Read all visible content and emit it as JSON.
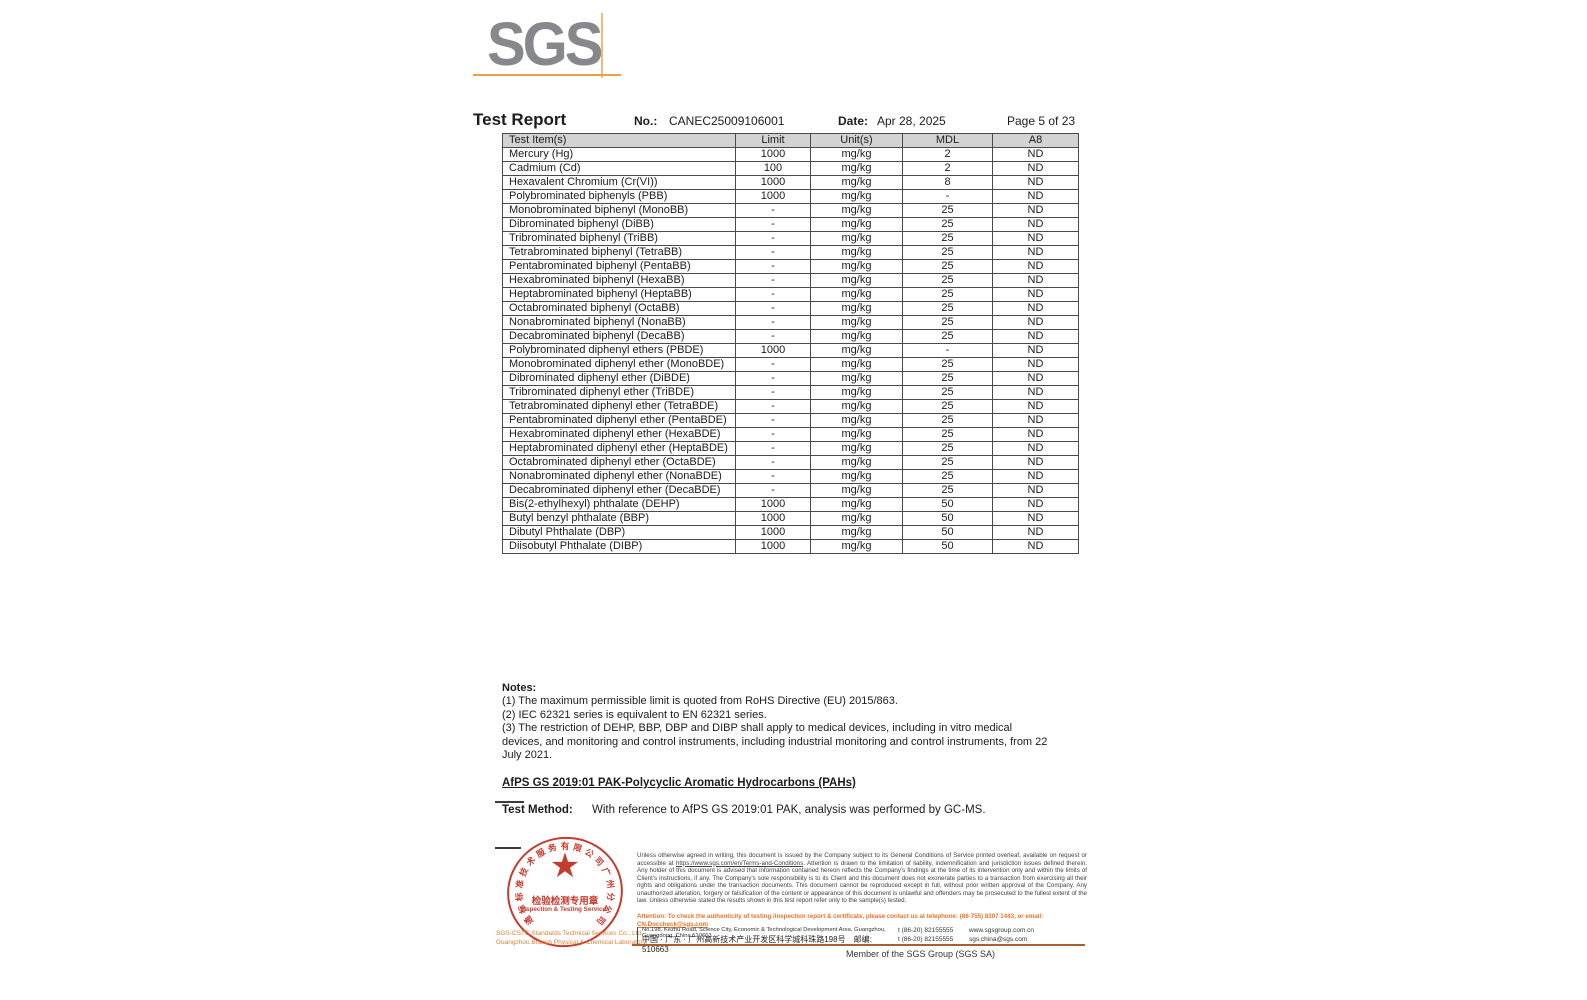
{
  "header": {
    "logo_text": "SGS",
    "title": "Test Report",
    "no_label": "No.:",
    "no_value": "CANEC25009106001",
    "date_label": "Date:",
    "date_value": "Apr 28, 2025",
    "page_label": "Page 5 of 23"
  },
  "table": {
    "columns": [
      "Test Item(s)",
      "Limit",
      "Unit(s)",
      "MDL",
      "A8"
    ],
    "rows": [
      {
        "item": "Mercury (Hg)",
        "limit": "1000",
        "unit": "mg/kg",
        "mdl": "2",
        "a8": "ND"
      },
      {
        "item": "Cadmium (Cd)",
        "limit": "100",
        "unit": "mg/kg",
        "mdl": "2",
        "a8": "ND"
      },
      {
        "item": "Hexavalent Chromium (Cr(VI))",
        "limit": "1000",
        "unit": "mg/kg",
        "mdl": "8",
        "a8": "ND"
      },
      {
        "item": "Polybrominated biphenyls (PBB)",
        "limit": "1000",
        "unit": "mg/kg",
        "mdl": "-",
        "a8": "ND"
      },
      {
        "item": "Monobrominated biphenyl (MonoBB)",
        "limit": "-",
        "unit": "mg/kg",
        "mdl": "25",
        "a8": "ND"
      },
      {
        "item": "Dibrominated biphenyl (DiBB)",
        "limit": "-",
        "unit": "mg/kg",
        "mdl": "25",
        "a8": "ND"
      },
      {
        "item": "Tribrominated biphenyl (TriBB)",
        "limit": "-",
        "unit": "mg/kg",
        "mdl": "25",
        "a8": "ND"
      },
      {
        "item": "Tetrabrominated biphenyl (TetraBB)",
        "limit": "-",
        "unit": "mg/kg",
        "mdl": "25",
        "a8": "ND"
      },
      {
        "item": "Pentabrominated biphenyl (PentaBB)",
        "limit": "-",
        "unit": "mg/kg",
        "mdl": "25",
        "a8": "ND"
      },
      {
        "item": "Hexabrominated biphenyl (HexaBB)",
        "limit": "-",
        "unit": "mg/kg",
        "mdl": "25",
        "a8": "ND"
      },
      {
        "item": "Heptabrominated biphenyl (HeptaBB)",
        "limit": "-",
        "unit": "mg/kg",
        "mdl": "25",
        "a8": "ND"
      },
      {
        "item": "Octabrominated biphenyl (OctaBB)",
        "limit": "-",
        "unit": "mg/kg",
        "mdl": "25",
        "a8": "ND"
      },
      {
        "item": "Nonabrominated biphenyl (NonaBB)",
        "limit": "-",
        "unit": "mg/kg",
        "mdl": "25",
        "a8": "ND"
      },
      {
        "item": "Decabrominated biphenyl (DecaBB)",
        "limit": "-",
        "unit": "mg/kg",
        "mdl": "25",
        "a8": "ND"
      },
      {
        "item": "Polybrominated diphenyl ethers (PBDE)",
        "limit": "1000",
        "unit": "mg/kg",
        "mdl": "-",
        "a8": "ND"
      },
      {
        "item": "Monobrominated diphenyl ether (MonoBDE)",
        "limit": "-",
        "unit": "mg/kg",
        "mdl": "25",
        "a8": "ND"
      },
      {
        "item": "Dibrominated diphenyl ether (DiBDE)",
        "limit": "-",
        "unit": "mg/kg",
        "mdl": "25",
        "a8": "ND"
      },
      {
        "item": "Tribrominated diphenyl ether (TriBDE)",
        "limit": "-",
        "unit": "mg/kg",
        "mdl": "25",
        "a8": "ND"
      },
      {
        "item": "Tetrabrominated diphenyl ether (TetraBDE)",
        "limit": "-",
        "unit": "mg/kg",
        "mdl": "25",
        "a8": "ND"
      },
      {
        "item": "Pentabrominated diphenyl ether (PentaBDE)",
        "limit": "-",
        "unit": "mg/kg",
        "mdl": "25",
        "a8": "ND"
      },
      {
        "item": "Hexabrominated diphenyl ether (HexaBDE)",
        "limit": "-",
        "unit": "mg/kg",
        "mdl": "25",
        "a8": "ND"
      },
      {
        "item": "Heptabrominated diphenyl ether (HeptaBDE)",
        "limit": "-",
        "unit": "mg/kg",
        "mdl": "25",
        "a8": "ND"
      },
      {
        "item": "Octabrominated diphenyl ether (OctaBDE)",
        "limit": "-",
        "unit": "mg/kg",
        "mdl": "25",
        "a8": "ND"
      },
      {
        "item": "Nonabrominated diphenyl ether (NonaBDE)",
        "limit": "-",
        "unit": "mg/kg",
        "mdl": "25",
        "a8": "ND"
      },
      {
        "item": "Decabrominated diphenyl ether (DecaBDE)",
        "limit": "-",
        "unit": "mg/kg",
        "mdl": "25",
        "a8": "ND"
      },
      {
        "item": "Bis(2-ethylhexyl) phthalate (DEHP)",
        "limit": "1000",
        "unit": "mg/kg",
        "mdl": "50",
        "a8": "ND"
      },
      {
        "item": "Butyl benzyl phthalate (BBP)",
        "limit": "1000",
        "unit": "mg/kg",
        "mdl": "50",
        "a8": "ND"
      },
      {
        "item": "Dibutyl Phthalate (DBP)",
        "limit": "1000",
        "unit": "mg/kg",
        "mdl": "50",
        "a8": "ND"
      },
      {
        "item": "Diisobutyl Phthalate (DIBP)",
        "limit": "1000",
        "unit": "mg/kg",
        "mdl": "50",
        "a8": "ND"
      }
    ]
  },
  "notes": {
    "heading": "Notes:",
    "items": [
      "(1) The maximum permissible limit is quoted from RoHS Directive (EU) 2015/863.",
      "(2) IEC 62321 series is equivalent to EN 62321 series.",
      "(3) The restriction of DEHP, BBP, DBP and DIBP shall apply to medical devices, including in vitro medical devices, and monitoring and control instruments, including industrial monitoring and control instruments, from 22 July 2021."
    ]
  },
  "section": {
    "heading": "AfPS GS 2019:01 PAK-Polycyclic Aromatic Hydrocarbons (PAHs)",
    "test_method_label": "Test Method:",
    "test_method_text": "With reference to AfPS GS 2019:01 PAK, analysis was performed by GC-MS."
  },
  "footer": {
    "disclaimer_p1": "Unless otherwise agreed in writing, this document is issued by the Company subject to its General Conditions of Service printed overleaf, available on request or accessible at ",
    "disclaimer_link": "https://www.sgs.com/en/Terms-and-Conditions",
    "disclaimer_p2": ". Attention is drawn to the limitation of liability, indemnification and jurisdiction issues defined therein. Any holder of this document is advised that information contained hereon reflects the Company's findings at the time of its intervention only and within the limits of Client's instructions, if any. The Company's sole responsibility is to its Client and this document does not exonerate parties to a transaction from exercising all their rights and obligations under the transaction documents. This document cannot be reproduced except in full, without prior written approval of the Company. Any unauthorized alteration, forgery or falsification of the content or appearance of this document is unlawful and offenders may be prosecuted to the fullest extent of the law. Unless otherwise stated the results shown in this test report refer only to the sample(s) tested.",
    "attention_p1": "Attention: To check the authenticity of testing /inspection report & certificate, please contact us at telephone: (86-755) 8307 1443, or email: ",
    "attention_email": "CN.Doccheck@sgs.com",
    "seal": {
      "ring_text": "通标标准技术服务有限公司广州分公司",
      "star": "★",
      "line1": "检验检测专用章",
      "line2": "Inspection & Testing Services"
    },
    "company_line1": "SGS-CSTC Standards Technical Services Co., Ltd.",
    "company_line2": "Guangzhou Branch Physical & Chemical Laboratory.",
    "address_en": "No.198, Kezhu Road, Science City, Economic & Technological Development Area, Guangzhou, Guangdong, China 510663",
    "address_cn": "中国 · 广东 · 广州高新技术产业开发区科学城科珠路198号　邮编: 510663",
    "tel1": "t (86-20) 82155555",
    "tel2": "t (86-20) 82155555",
    "web": "www.sgsgroup.com.cn",
    "email": "sgs.china@sgs.com",
    "member": "Member of the SGS Group (SGS SA)"
  },
  "colors": {
    "logo_gray": "#86888b",
    "accent_orange": "#e6a340",
    "seal_red": "#c43c2e",
    "attention_orange": "#e4752b",
    "table_header_bg": "#d2d3d5",
    "footer_line_brown": "#a8602f"
  }
}
